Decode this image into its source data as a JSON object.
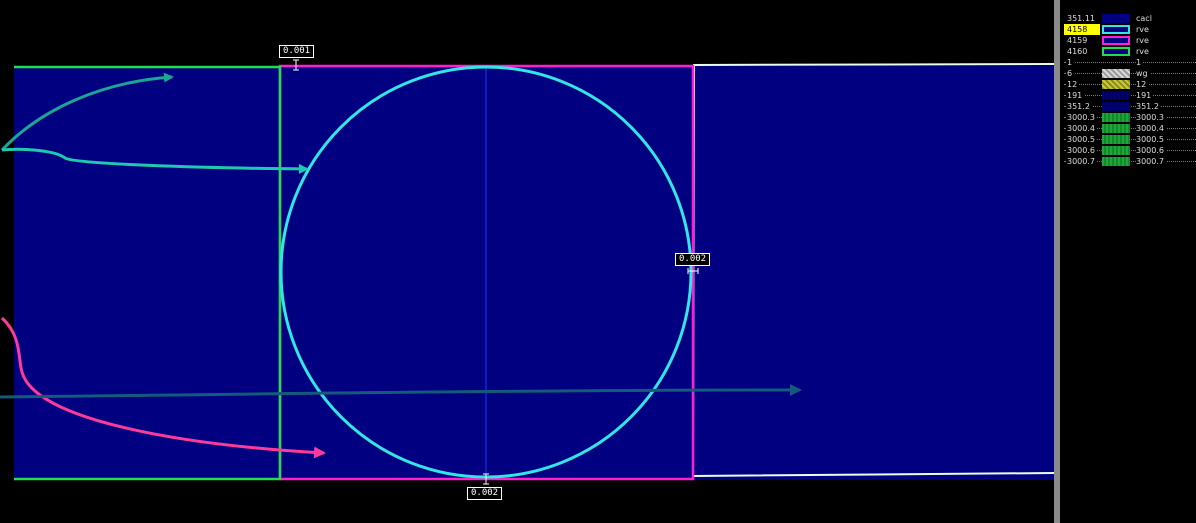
{
  "labels": {
    "top_left": "0.001",
    "right_mid": "0.002",
    "bottom_mid": "0.002"
  },
  "colors": {
    "background": "#000000",
    "fill": "#000080",
    "circle": "#33e6e6",
    "magenta": "#ff1fd2",
    "green": "#1fe04a",
    "white_edge": "#e8ffe8",
    "arrow_teal": "#1aa594",
    "arrow_cyan": "#20c8b0",
    "arrow_pink": "#ff3a9a",
    "arrow_blue": "#145a7a"
  },
  "legend": {
    "rows": [
      {
        "id": "351.11",
        "name": "cacl",
        "swatch": "solid-navy",
        "dotted": false,
        "highlight": false
      },
      {
        "id": "4158",
        "name": "rve",
        "swatch": "outline-cyan",
        "dotted": false,
        "highlight": true
      },
      {
        "id": "4159",
        "name": "rve",
        "swatch": "outline-magenta",
        "dotted": false,
        "highlight": false
      },
      {
        "id": "4160",
        "name": "rve",
        "swatch": "outline-green",
        "dotted": false,
        "highlight": false
      },
      {
        "id": "1",
        "name": "1",
        "swatch": "none",
        "dotted": true,
        "highlight": false
      },
      {
        "id": "6",
        "name": "wg",
        "swatch": "pattern-gray",
        "dotted": true,
        "highlight": false
      },
      {
        "id": "12",
        "name": "12",
        "swatch": "pattern-olive",
        "dotted": true,
        "highlight": false
      },
      {
        "id": "191",
        "name": "191",
        "swatch": "dotted-navy",
        "dotted": true,
        "highlight": false
      },
      {
        "id": "351.2",
        "name": "351.2",
        "swatch": "dotted-navy2",
        "dotted": true,
        "highlight": false
      },
      {
        "id": "3000.3",
        "name": "3000.3",
        "swatch": "dotted-green",
        "dotted": true,
        "highlight": false
      },
      {
        "id": "3000.4",
        "name": "3000.4",
        "swatch": "dotted-green",
        "dotted": true,
        "highlight": false
      },
      {
        "id": "3000.5",
        "name": "3000.5",
        "swatch": "dotted-green",
        "dotted": true,
        "highlight": false
      },
      {
        "id": "3000.6",
        "name": "3000.6",
        "swatch": "dotted-green",
        "dotted": true,
        "highlight": false
      },
      {
        "id": "3000.7",
        "name": "3000.7",
        "swatch": "dotted-green",
        "dotted": true,
        "highlight": false
      }
    ]
  }
}
